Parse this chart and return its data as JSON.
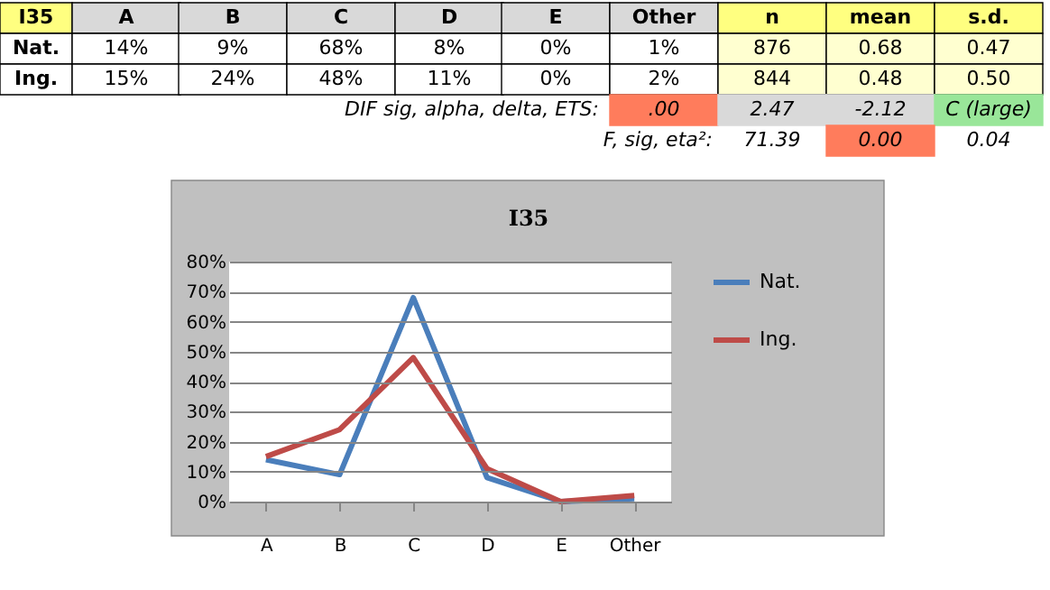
{
  "chart_data": {
    "type": "line",
    "title": "I35",
    "categories": [
      "A",
      "B",
      "C",
      "D",
      "E",
      "Other"
    ],
    "series": [
      {
        "name": "Nat.",
        "color": "#4a7ebb",
        "values": [
          14,
          9,
          68,
          8,
          0,
          1
        ]
      },
      {
        "name": "Ing.",
        "color": "#be4b48",
        "values": [
          15,
          24,
          48,
          11,
          0,
          2
        ]
      }
    ],
    "ylim": [
      0,
      80
    ],
    "yticks": [
      {
        "value": 0,
        "label": "0%"
      },
      {
        "value": 10,
        "label": "10%"
      },
      {
        "value": 20,
        "label": "20%"
      },
      {
        "value": 30,
        "label": "30%"
      },
      {
        "value": 40,
        "label": "40%"
      },
      {
        "value": 50,
        "label": "50%"
      },
      {
        "value": 60,
        "label": "60%"
      },
      {
        "value": 70,
        "label": "70%"
      },
      {
        "value": 80,
        "label": "80%"
      }
    ],
    "grid": "y",
    "legend": "right",
    "marker": "none",
    "line_style": "solid",
    "annotations": [
      "14%",
      "9%",
      "68%",
      "8%",
      "0%",
      "1%",
      "15%",
      "24%",
      "48%",
      "11%",
      "0%",
      "2%",
      "n",
      "mean",
      "s.d.",
      "876",
      "0.68",
      "0.47",
      "844",
      "0.48",
      "0.50",
      "DIF sig, alpha, delta, ETS:",
      ".00",
      "2.47",
      "-2.12",
      "C (large)",
      "F, sig, eta²:",
      "71.39",
      "0.00",
      "0.04"
    ]
  }
}
